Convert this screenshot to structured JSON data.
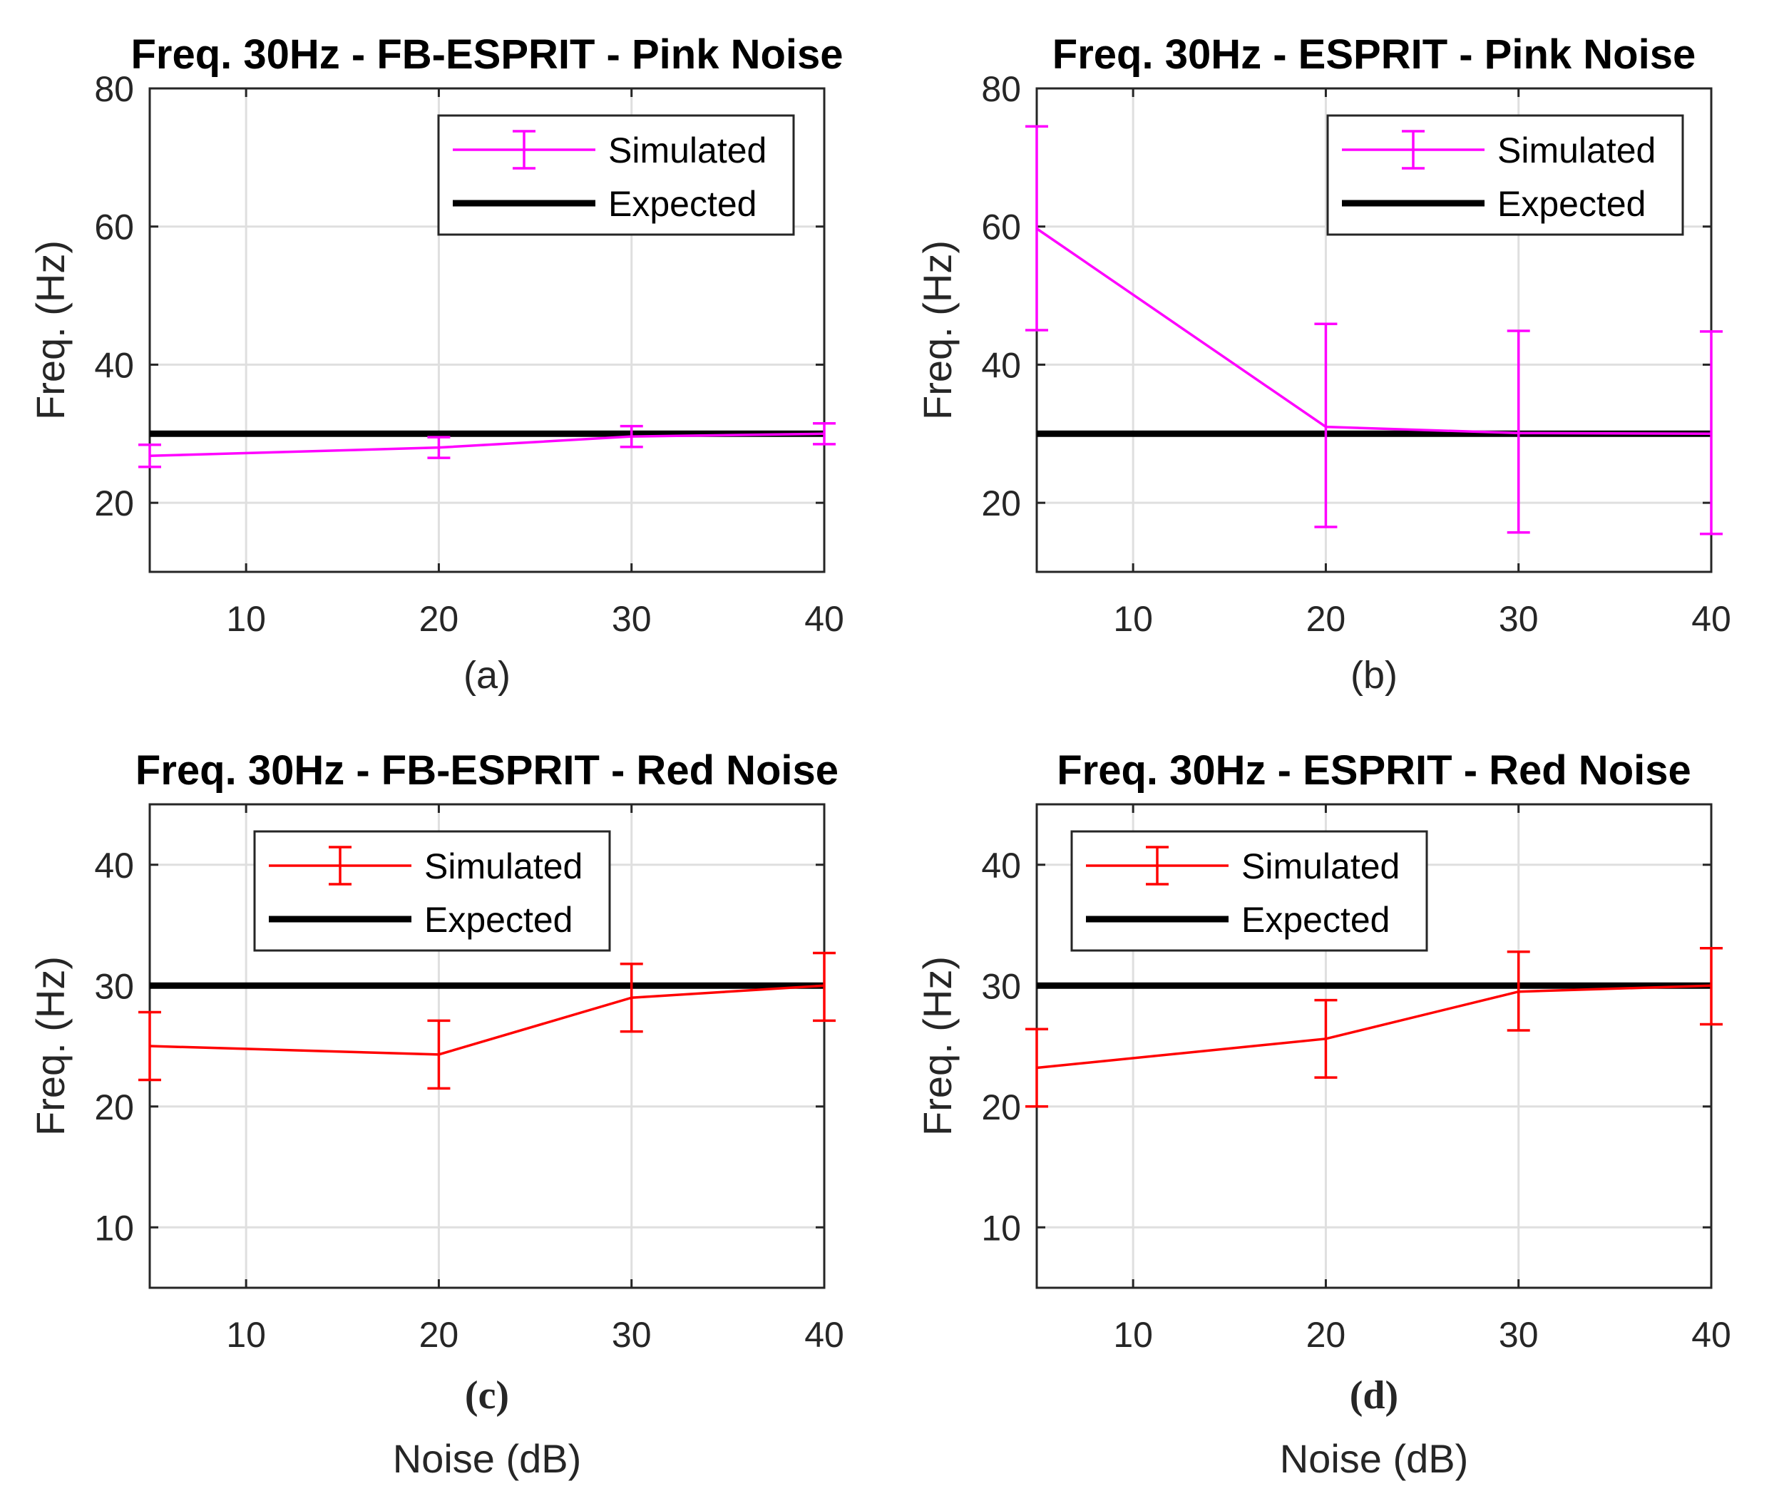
{
  "chart_data": [
    {
      "id": "a",
      "type": "line",
      "title": "Freq. 30Hz - FB-ESPRIT - Pink Noise",
      "caption": "(a)",
      "xlabel": "",
      "ylabel": "Freq.  (Hz)",
      "xlim": [
        5,
        40
      ],
      "ylim": [
        10,
        80
      ],
      "xticks": [
        10,
        20,
        30,
        40
      ],
      "yticks": [
        20,
        40,
        60,
        80
      ],
      "grid": true,
      "legend_position": "top-right",
      "series": [
        {
          "name": "Simulated",
          "color": "#ff00ff",
          "x": [
            5,
            20,
            30,
            40
          ],
          "values": [
            26.8,
            28.0,
            29.6,
            30.0
          ],
          "err_low": [
            25.2,
            26.5,
            28.1,
            28.5
          ],
          "err_high": [
            28.4,
            29.5,
            31.1,
            31.5
          ]
        },
        {
          "name": "Expected",
          "color": "#000000",
          "value": 30
        }
      ]
    },
    {
      "id": "b",
      "type": "line",
      "title": "Freq. 30Hz - ESPRIT - Pink Noise",
      "caption": "(b)",
      "xlabel": "",
      "ylabel": "Freq.  (Hz)",
      "xlim": [
        5,
        40
      ],
      "ylim": [
        10,
        80
      ],
      "xticks": [
        10,
        20,
        30,
        40
      ],
      "yticks": [
        20,
        40,
        60,
        80
      ],
      "grid": true,
      "legend_position": "top-right",
      "series": [
        {
          "name": "Simulated",
          "color": "#ff00ff",
          "x": [
            5,
            20,
            30,
            40
          ],
          "values": [
            59.7,
            31.0,
            30.1,
            30.0
          ],
          "err_low": [
            45.0,
            16.5,
            15.7,
            15.5
          ],
          "err_high": [
            74.5,
            45.9,
            44.9,
            44.8
          ]
        },
        {
          "name": "Expected",
          "color": "#000000",
          "value": 30
        }
      ]
    },
    {
      "id": "c",
      "type": "line",
      "title": "Freq. 30Hz - FB-ESPRIT - Red Noise",
      "caption": "(c)",
      "xlabel": "Noise (dB)",
      "ylabel": "Freq.  (Hz)",
      "xlim": [
        5,
        40
      ],
      "ylim": [
        5,
        45
      ],
      "xticks": [
        10,
        20,
        30,
        40
      ],
      "yticks": [
        10,
        20,
        30,
        40
      ],
      "grid": true,
      "legend_position": "top-center",
      "series": [
        {
          "name": "Simulated",
          "color": "#ff0000",
          "x": [
            5,
            20,
            30,
            40
          ],
          "values": [
            25.0,
            24.3,
            29.0,
            30.0
          ],
          "err_low": [
            22.2,
            21.5,
            26.2,
            27.1
          ],
          "err_high": [
            27.8,
            27.1,
            31.8,
            32.7
          ]
        },
        {
          "name": "Expected",
          "color": "#000000",
          "value": 30
        }
      ]
    },
    {
      "id": "d",
      "type": "line",
      "title": "Freq. 30Hz - ESPRIT - Red Noise",
      "caption": "(d)",
      "xlabel": "Noise (dB)",
      "ylabel": "Freq.  (Hz)",
      "xlim": [
        5,
        40
      ],
      "ylim": [
        5,
        45
      ],
      "xticks": [
        10,
        20,
        30,
        40
      ],
      "yticks": [
        10,
        20,
        30,
        40
      ],
      "grid": true,
      "legend_position": "top-center",
      "series": [
        {
          "name": "Simulated",
          "color": "#ff0000",
          "x": [
            5,
            20,
            30,
            40
          ],
          "values": [
            23.2,
            25.6,
            29.5,
            30.0
          ],
          "err_low": [
            20.0,
            22.4,
            26.3,
            26.8
          ],
          "err_high": [
            26.4,
            28.8,
            32.8,
            33.1
          ]
        },
        {
          "name": "Expected",
          "color": "#000000",
          "value": 30
        }
      ]
    }
  ]
}
